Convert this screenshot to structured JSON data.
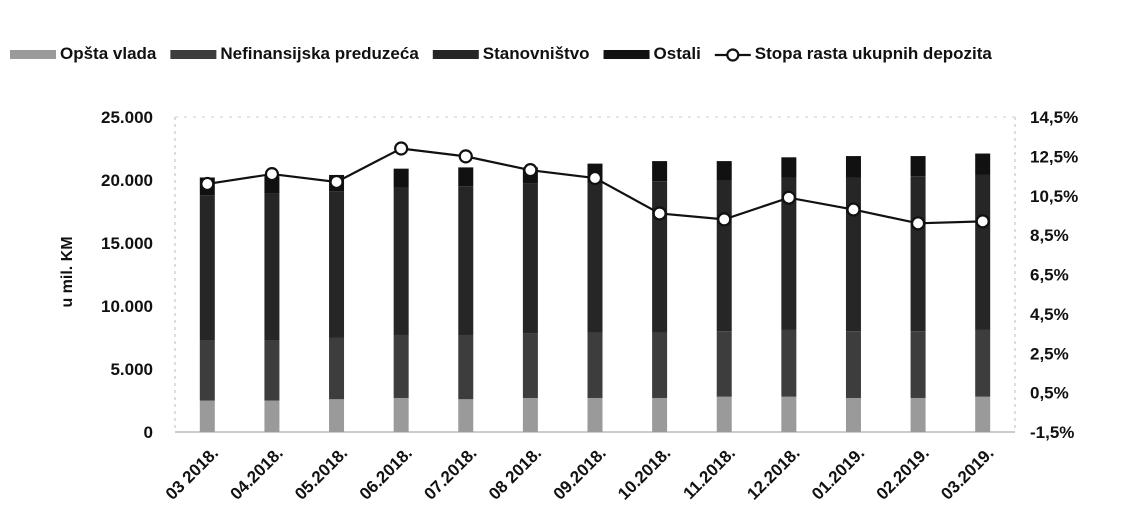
{
  "chart_data": {
    "type": "bar",
    "stacked": true,
    "categories": [
      "03 2018.",
      "04.2018.",
      "05.2018.",
      "06.2018.",
      "07.2018.",
      "08 2018.",
      "09.2018.",
      "10.2018.",
      "11.2018.",
      "12.2018.",
      "01.2019.",
      "02.2019.",
      "03.2019."
    ],
    "series": [
      {
        "name": "Opšta vlada",
        "values": [
          2500,
          2500,
          2600,
          2700,
          2600,
          2700,
          2700,
          2700,
          2800,
          2800,
          2700,
          2700,
          2800
        ],
        "color": "#9a9a9a"
      },
      {
        "name": "Nefinansijska preduzeća",
        "values": [
          4800,
          4800,
          4900,
          5000,
          5100,
          5100,
          5200,
          5200,
          5200,
          5300,
          5300,
          5300,
          5300
        ],
        "color": "#3d3d3d"
      },
      {
        "name": "Stanovništvo",
        "values": [
          11500,
          11600,
          11600,
          11700,
          11800,
          11900,
          11900,
          12000,
          12000,
          12100,
          12200,
          12300,
          12300
        ],
        "color": "#262626"
      },
      {
        "name": "Ostali",
        "values": [
          1400,
          1400,
          1300,
          1500,
          1500,
          1300,
          1500,
          1600,
          1500,
          1600,
          1700,
          1600,
          1700
        ],
        "color": "#111111"
      }
    ],
    "line_series": {
      "name": "Stopa rasta ukupnih depozita",
      "values": [
        11.1,
        11.6,
        11.2,
        12.9,
        12.5,
        11.8,
        11.4,
        9.6,
        9.3,
        10.4,
        9.8,
        9.1,
        9.2
      ],
      "axis": "right"
    },
    "ylabel": "u mil. KM",
    "ylim": [
      0,
      25000
    ],
    "y_ticks": [
      "0",
      "5.000",
      "10.000",
      "15.000",
      "20.000",
      "25.000"
    ],
    "y2lim": [
      -1.5,
      14.5
    ],
    "y2_ticks": [
      "-1,5%",
      "0,5%",
      "2,5%",
      "4,5%",
      "6,5%",
      "8,5%",
      "10,5%",
      "12,5%",
      "14,5%"
    ],
    "legend_position": "top"
  }
}
